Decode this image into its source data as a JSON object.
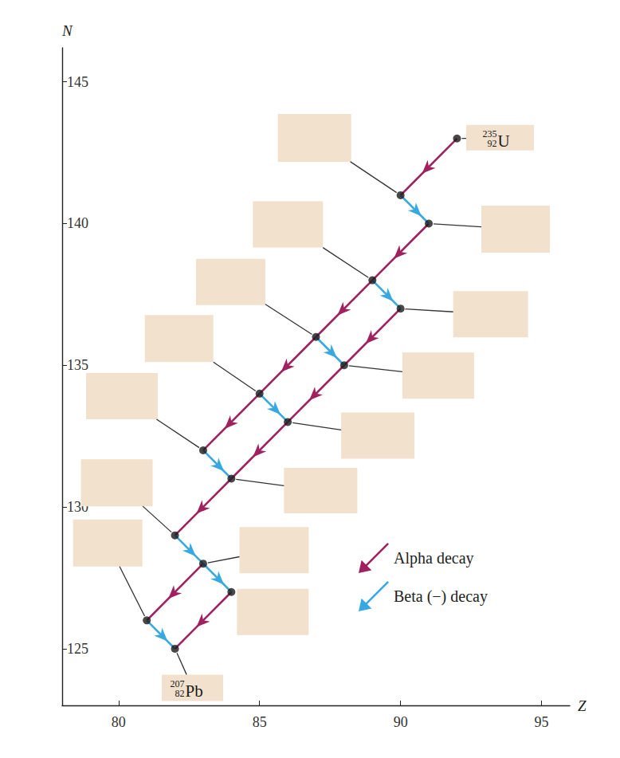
{
  "chart_data": {
    "type": "scatter",
    "x_label": "Z",
    "y_label": "N",
    "xlim": [
      78,
      96
    ],
    "ylim": [
      123,
      146.2
    ],
    "xticks": [
      80,
      85,
      90,
      95
    ],
    "yticks": [
      125,
      130,
      135,
      140,
      145
    ],
    "grid": false,
    "legend": "lower right",
    "points": {
      "x": [
        92,
        90,
        91,
        89,
        90,
        87,
        88,
        85,
        86,
        83,
        84,
        82,
        83,
        84,
        81,
        82
      ],
      "y": [
        143,
        141,
        140,
        138,
        137,
        136,
        135,
        134,
        133,
        132,
        131,
        129,
        128,
        127,
        126,
        125
      ],
      "color": "#1a1a1a",
      "marker": "circle",
      "labels": [
        {
          "mass": 235,
          "atomic_number": 92,
          "symbol": "U"
        },
        null,
        null,
        null,
        null,
        null,
        null,
        null,
        null,
        null,
        null,
        null,
        null,
        null,
        null,
        {
          "mass": 207,
          "atomic_number": 82,
          "symbol": "Pb"
        }
      ]
    },
    "series": [
      {
        "name": "Alpha decay",
        "type": "arrow",
        "color": "#a0215f",
        "x_from": [
          92,
          91,
          89,
          90,
          87,
          88,
          85,
          86,
          84,
          83,
          84
        ],
        "y_from": [
          143,
          140,
          138,
          137,
          136,
          135,
          134,
          133,
          131,
          128,
          127
        ],
        "x_to": [
          90,
          89,
          87,
          88,
          85,
          86,
          83,
          84,
          82,
          81,
          82
        ],
        "y_to": [
          141,
          138,
          136,
          135,
          134,
          133,
          132,
          131,
          129,
          126,
          125
        ]
      },
      {
        "name": "Beta (−) decay",
        "type": "arrow",
        "color": "#38a9e0",
        "x_from": [
          90,
          89,
          87,
          85,
          83,
          82,
          83,
          81
        ],
        "y_from": [
          141,
          138,
          136,
          134,
          132,
          129,
          128,
          126
        ],
        "x_to": [
          91,
          90,
          88,
          86,
          84,
          83,
          84,
          82
        ],
        "y_to": [
          140,
          137,
          135,
          133,
          131,
          128,
          127,
          125
        ]
      }
    ]
  }
}
